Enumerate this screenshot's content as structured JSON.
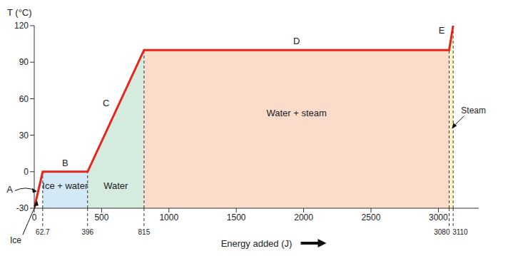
{
  "chart_data": {
    "type": "line",
    "x_label": "Energy added (J)",
    "y_label": "T (°C)",
    "x": [
      0,
      62.7,
      396,
      815,
      3080,
      3110
    ],
    "values": [
      -30,
      0,
      0,
      100,
      100,
      120
    ],
    "color": "#e8231e",
    "xlim": [
      0,
      3300
    ],
    "ylim": [
      -30,
      120
    ],
    "xticks": [
      0,
      500,
      1000,
      1500,
      2000,
      2500,
      3000
    ],
    "yticks": [
      -30,
      0,
      30,
      60,
      90,
      120
    ],
    "grid": false,
    "boundaries": [
      62.7,
      396,
      815,
      3080,
      3110
    ],
    "segments": [
      {
        "label": "A",
        "x": [
          0,
          62.7
        ]
      },
      {
        "label": "B",
        "x": [
          62.7,
          396
        ]
      },
      {
        "label": "C",
        "x": [
          396,
          815
        ]
      },
      {
        "label": "D",
        "x": [
          815,
          3080
        ]
      },
      {
        "label": "E",
        "x": [
          3080,
          3110
        ]
      }
    ],
    "regions": [
      {
        "label": "Ice",
        "x": [
          0,
          62.7
        ],
        "color": "#ffffff"
      },
      {
        "label": "Ice + water",
        "x": [
          62.7,
          396
        ],
        "color": "#d3eaf6"
      },
      {
        "label": "Water",
        "x": [
          396,
          815
        ],
        "color": "#d5ebdd"
      },
      {
        "label": "Water + steam",
        "x": [
          815,
          3080
        ],
        "color": "#fbdccb"
      },
      {
        "label": "Steam",
        "x": [
          3080,
          3110
        ],
        "color": "#fbf5c6"
      }
    ]
  }
}
